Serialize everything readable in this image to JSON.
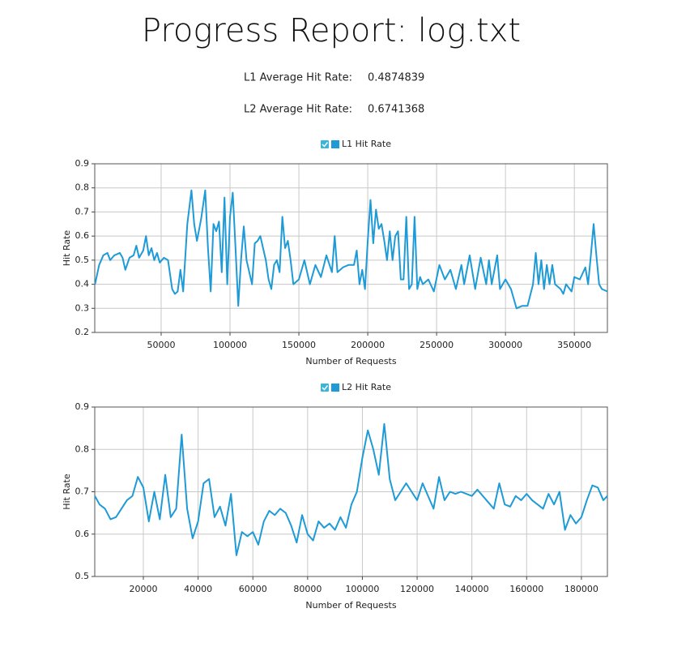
{
  "header": {
    "title": "Progress Report:  log.txt",
    "stats": [
      {
        "label": "L1 Average Hit Rate:",
        "value": "0.4874839"
      },
      {
        "label": "L2 Average Hit Rate:",
        "value": "0.6741368"
      }
    ]
  },
  "chart_data": [
    {
      "type": "line",
      "xlabel": "Number of Requests",
      "ylabel": "Hit Rate",
      "grid": true,
      "legend": "top",
      "xlim": [
        1800,
        374000
      ],
      "ylim": [
        0.2,
        0.9
      ],
      "xticks": [
        50000,
        100000,
        150000,
        200000,
        250000,
        300000,
        350000
      ],
      "yticks": [
        0.2,
        0.3,
        0.4,
        0.5,
        0.6,
        0.7,
        0.8,
        0.9
      ],
      "x": [
        2000,
        5000,
        8000,
        11000,
        13000,
        16000,
        20000,
        22000,
        24000,
        27000,
        30000,
        32000,
        34000,
        37000,
        39000,
        41000,
        43000,
        45000,
        47000,
        49000,
        52000,
        55000,
        58000,
        60000,
        62000,
        64000,
        66000,
        69000,
        72000,
        74000,
        76000,
        79000,
        82000,
        84000,
        86000,
        88000,
        90000,
        92000,
        94000,
        96000,
        98000,
        100000,
        102000,
        104000,
        106000,
        108000,
        110000,
        112000,
        114000,
        116000,
        118000,
        120000,
        122000,
        124000,
        126000,
        128000,
        130000,
        132000,
        134000,
        136000,
        138000,
        140000,
        142000,
        144000,
        146000,
        150000,
        154000,
        158000,
        162000,
        166000,
        170000,
        174000,
        176000,
        178000,
        182000,
        186000,
        190000,
        192000,
        194000,
        196000,
        198000,
        200000,
        202000,
        204000,
        206000,
        208000,
        210000,
        212000,
        214000,
        216000,
        218000,
        220000,
        222000,
        224000,
        226000,
        228000,
        230000,
        232000,
        234000,
        236000,
        238000,
        240000,
        244000,
        248000,
        252000,
        256000,
        260000,
        264000,
        268000,
        270000,
        274000,
        278000,
        282000,
        286000,
        288000,
        290000,
        294000,
        296000,
        300000,
        304000,
        308000,
        312000,
        316000,
        320000,
        322000,
        324000,
        326000,
        328000,
        330000,
        332000,
        334000,
        336000,
        340000,
        342000,
        344000,
        348000,
        350000,
        354000,
        358000,
        360000,
        362000,
        364000,
        366000,
        368000,
        370000,
        374000
      ],
      "series": [
        {
          "name": "L1 Hit Rate",
          "color": "#1e9bd7",
          "values": [
            0.4,
            0.48,
            0.52,
            0.53,
            0.5,
            0.52,
            0.53,
            0.51,
            0.46,
            0.51,
            0.52,
            0.56,
            0.51,
            0.54,
            0.6,
            0.52,
            0.55,
            0.5,
            0.53,
            0.49,
            0.51,
            0.5,
            0.38,
            0.36,
            0.37,
            0.46,
            0.37,
            0.65,
            0.79,
            0.65,
            0.58,
            0.67,
            0.79,
            0.55,
            0.37,
            0.65,
            0.62,
            0.66,
            0.45,
            0.76,
            0.4,
            0.68,
            0.78,
            0.55,
            0.31,
            0.5,
            0.64,
            0.5,
            0.45,
            0.4,
            0.57,
            0.58,
            0.6,
            0.55,
            0.5,
            0.42,
            0.38,
            0.48,
            0.5,
            0.45,
            0.68,
            0.55,
            0.58,
            0.5,
            0.4,
            0.42,
            0.5,
            0.4,
            0.48,
            0.43,
            0.52,
            0.45,
            0.6,
            0.45,
            0.47,
            0.48,
            0.48,
            0.54,
            0.4,
            0.46,
            0.38,
            0.58,
            0.75,
            0.57,
            0.71,
            0.63,
            0.65,
            0.58,
            0.5,
            0.62,
            0.5,
            0.6,
            0.62,
            0.42,
            0.42,
            0.68,
            0.38,
            0.4,
            0.68,
            0.38,
            0.43,
            0.4,
            0.42,
            0.37,
            0.48,
            0.42,
            0.46,
            0.38,
            0.48,
            0.4,
            0.52,
            0.38,
            0.51,
            0.4,
            0.5,
            0.4,
            0.52,
            0.38,
            0.42,
            0.38,
            0.3,
            0.31,
            0.31,
            0.4,
            0.53,
            0.4,
            0.5,
            0.38,
            0.48,
            0.4,
            0.48,
            0.4,
            0.38,
            0.36,
            0.4,
            0.37,
            0.43,
            0.42,
            0.47,
            0.4,
            0.52,
            0.65,
            0.52,
            0.4,
            0.38,
            0.37
          ]
        }
      ]
    },
    {
      "type": "line",
      "xlabel": "Number of Requests",
      "ylabel": "Hit Rate",
      "grid": true,
      "legend": "top",
      "xlim": [
        2250,
        189500
      ],
      "ylim": [
        0.5,
        0.9
      ],
      "xticks": [
        20000,
        40000,
        60000,
        80000,
        100000,
        120000,
        140000,
        160000,
        180000
      ],
      "yticks": [
        0.5,
        0.6,
        0.7,
        0.8,
        0.9
      ],
      "x": [
        2300,
        4000,
        6000,
        8000,
        10000,
        12000,
        14000,
        16000,
        18000,
        20000,
        22000,
        24000,
        26000,
        28000,
        30000,
        32000,
        34000,
        36000,
        38000,
        40000,
        42000,
        44000,
        46000,
        48000,
        50000,
        52000,
        54000,
        56000,
        58000,
        60000,
        62000,
        64000,
        66000,
        68000,
        70000,
        72000,
        74000,
        76000,
        78000,
        80000,
        82000,
        84000,
        86000,
        88000,
        90000,
        92000,
        94000,
        96000,
        98000,
        100000,
        102000,
        104000,
        106000,
        108000,
        110000,
        112000,
        114000,
        116000,
        118000,
        120000,
        122000,
        124000,
        126000,
        128000,
        130000,
        132000,
        134000,
        136000,
        140000,
        142000,
        146000,
        148000,
        150000,
        152000,
        154000,
        156000,
        158000,
        160000,
        162000,
        164000,
        166000,
        168000,
        170000,
        172000,
        174000,
        176000,
        178000,
        180000,
        182000,
        184000,
        186000,
        188000,
        189500
      ],
      "series": [
        {
          "name": "L2 Hit Rate",
          "color": "#1e9bd7",
          "values": [
            0.69,
            0.67,
            0.66,
            0.635,
            0.64,
            0.66,
            0.68,
            0.69,
            0.735,
            0.71,
            0.63,
            0.7,
            0.635,
            0.74,
            0.64,
            0.66,
            0.835,
            0.66,
            0.59,
            0.63,
            0.72,
            0.73,
            0.64,
            0.665,
            0.62,
            0.695,
            0.55,
            0.605,
            0.595,
            0.605,
            0.575,
            0.63,
            0.655,
            0.645,
            0.66,
            0.65,
            0.62,
            0.58,
            0.645,
            0.6,
            0.585,
            0.63,
            0.615,
            0.625,
            0.61,
            0.64,
            0.615,
            0.67,
            0.7,
            0.78,
            0.845,
            0.8,
            0.74,
            0.86,
            0.73,
            0.68,
            0.7,
            0.72,
            0.7,
            0.68,
            0.72,
            0.69,
            0.66,
            0.735,
            0.68,
            0.7,
            0.695,
            0.7,
            0.69,
            0.705,
            0.675,
            0.66,
            0.72,
            0.67,
            0.665,
            0.69,
            0.68,
            0.695,
            0.68,
            0.67,
            0.66,
            0.695,
            0.67,
            0.7,
            0.61,
            0.645,
            0.625,
            0.64,
            0.68,
            0.715,
            0.71,
            0.68,
            0.69
          ]
        }
      ]
    }
  ]
}
